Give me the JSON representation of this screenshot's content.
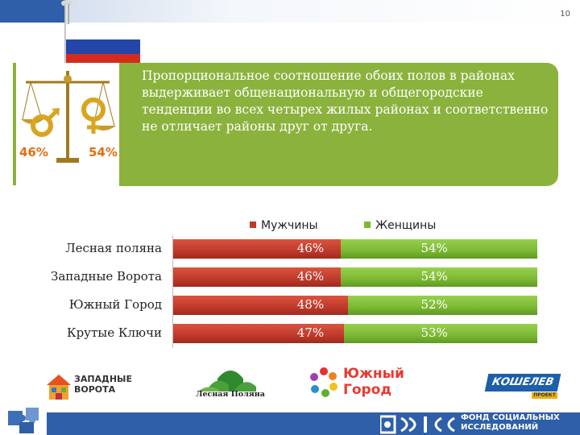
{
  "page_number": "10",
  "callout": {
    "male_percent": "46%",
    "female_percent": "54%",
    "text": "Пропорциональное соотношение обоих полов в районах выдерживает общенациональную и общегородские тенденции во всех четырех жилых районах и соответственно не отличает районы друг от друга."
  },
  "colors": {
    "male": "#c0392b",
    "female": "#7cb832",
    "callout_green": "#8bb23c",
    "footer_blue": "#2e5fa8"
  },
  "chart_data": {
    "type": "bar",
    "orientation": "horizontal",
    "stacked": true,
    "categories": [
      "Лесная поляна",
      "Западные Ворота",
      "Южный Город",
      "Крутые Ключи"
    ],
    "series": [
      {
        "name": "Мужчины",
        "values": [
          46,
          46,
          48,
          47
        ],
        "labels": [
          "46%",
          "46%",
          "48%",
          "47%"
        ]
      },
      {
        "name": "Женщины",
        "values": [
          54,
          54,
          52,
          53
        ],
        "labels": [
          "54%",
          "54%",
          "52%",
          "53%"
        ]
      }
    ],
    "xlim": [
      0,
      100
    ],
    "legend_position": "top",
    "grid": false
  },
  "logos": {
    "zapadnye_line1": "ЗАПАДНЫЕ",
    "zapadnye_line2": "ВОРОТА",
    "lesnaya": "Лесная Поляна",
    "yuzhny_line1": "Южный",
    "yuzhny_line2": "Город",
    "koshelev": "КОШЕЛЕВ",
    "koshelev_sub": "ПРОЕКТ"
  },
  "footer": {
    "line1": "ФОНД СОЦИАЛЬНЫХ",
    "line2": "ИССЛЕДОВАНИЙ"
  }
}
